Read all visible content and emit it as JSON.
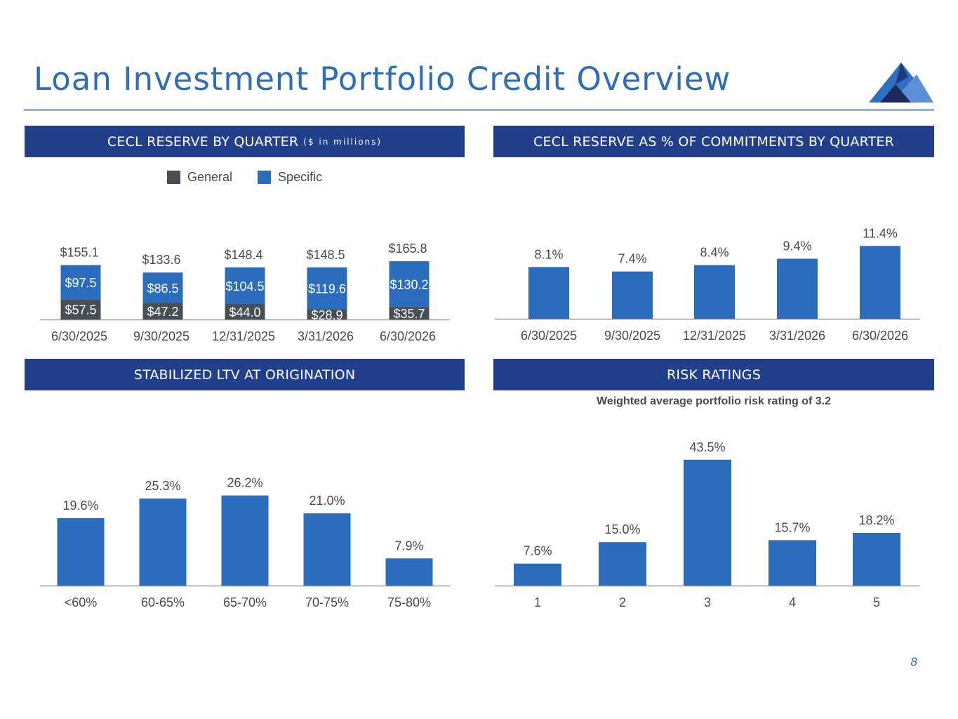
{
  "page": {
    "title": "Loan Investment Portfolio Credit Overview",
    "page_number": "8"
  },
  "colors": {
    "header_bg": "#223f8c",
    "bar_blue": "#2b6cbd",
    "general_gray": "#474f54",
    "title_blue": "#2f6db5"
  },
  "panels": {
    "cecl_reserve": {
      "title": "CECL RESERVE BY QUARTER",
      "unit": "($ in millions)",
      "legend": {
        "general": "General",
        "specific": "Specific"
      }
    },
    "cecl_pct": {
      "title": "CECL RESERVE AS % OF COMMITMENTS BY QUARTER"
    },
    "ltv": {
      "title": "STABILIZED LTV AT ORIGINATION"
    },
    "risk": {
      "title": "RISK RATINGS",
      "subtitle": "Weighted average portfolio risk rating of 3.2"
    }
  },
  "chart_data": [
    {
      "id": "cecl_reserve",
      "type": "bar",
      "stacked": true,
      "categories": [
        "6/30/2025",
        "9/30/2025",
        "12/31/2025",
        "3/31/2026",
        "6/30/2026"
      ],
      "series": [
        {
          "name": "General",
          "values": [
            57.5,
            47.2,
            44.0,
            28.9,
            35.7
          ],
          "labels": [
            "$57.5",
            "$47.2",
            "$44.0",
            "$28.9",
            "$35.7"
          ]
        },
        {
          "name": "Specific",
          "values": [
            97.5,
            86.5,
            104.5,
            119.6,
            130.2
          ],
          "labels": [
            "$97.5",
            "$86.5",
            "$104.5",
            "$119.6",
            "$130.2"
          ]
        }
      ],
      "totals": [
        155.1,
        133.6,
        148.4,
        148.5,
        165.8
      ],
      "total_labels": [
        "$155.1",
        "$133.6",
        "$148.4",
        "$148.5",
        "$165.8"
      ],
      "legend": "top-center",
      "grid": false
    },
    {
      "id": "cecl_pct",
      "type": "bar",
      "categories": [
        "6/30/2025",
        "9/30/2025",
        "12/31/2025",
        "3/31/2026",
        "6/30/2026"
      ],
      "values": [
        8.1,
        7.4,
        8.4,
        9.4,
        11.4
      ],
      "labels": [
        "8.1%",
        "7.4%",
        "8.4%",
        "9.4%",
        "11.4%"
      ],
      "grid": false
    },
    {
      "id": "ltv",
      "type": "bar",
      "categories": [
        "<60%",
        "60-65%",
        "65-70%",
        "70-75%",
        "75-80%"
      ],
      "values": [
        19.6,
        25.3,
        26.2,
        21.0,
        7.9
      ],
      "labels": [
        "19.6%",
        "25.3%",
        "26.2%",
        "21.0%",
        "7.9%"
      ],
      "grid": false
    },
    {
      "id": "risk",
      "type": "bar",
      "categories": [
        "1",
        "2",
        "3",
        "4",
        "5"
      ],
      "values": [
        7.6,
        15.0,
        43.5,
        15.7,
        18.2
      ],
      "labels": [
        "7.6%",
        "15.0%",
        "43.5%",
        "15.7%",
        "18.2%"
      ],
      "grid": false
    }
  ]
}
